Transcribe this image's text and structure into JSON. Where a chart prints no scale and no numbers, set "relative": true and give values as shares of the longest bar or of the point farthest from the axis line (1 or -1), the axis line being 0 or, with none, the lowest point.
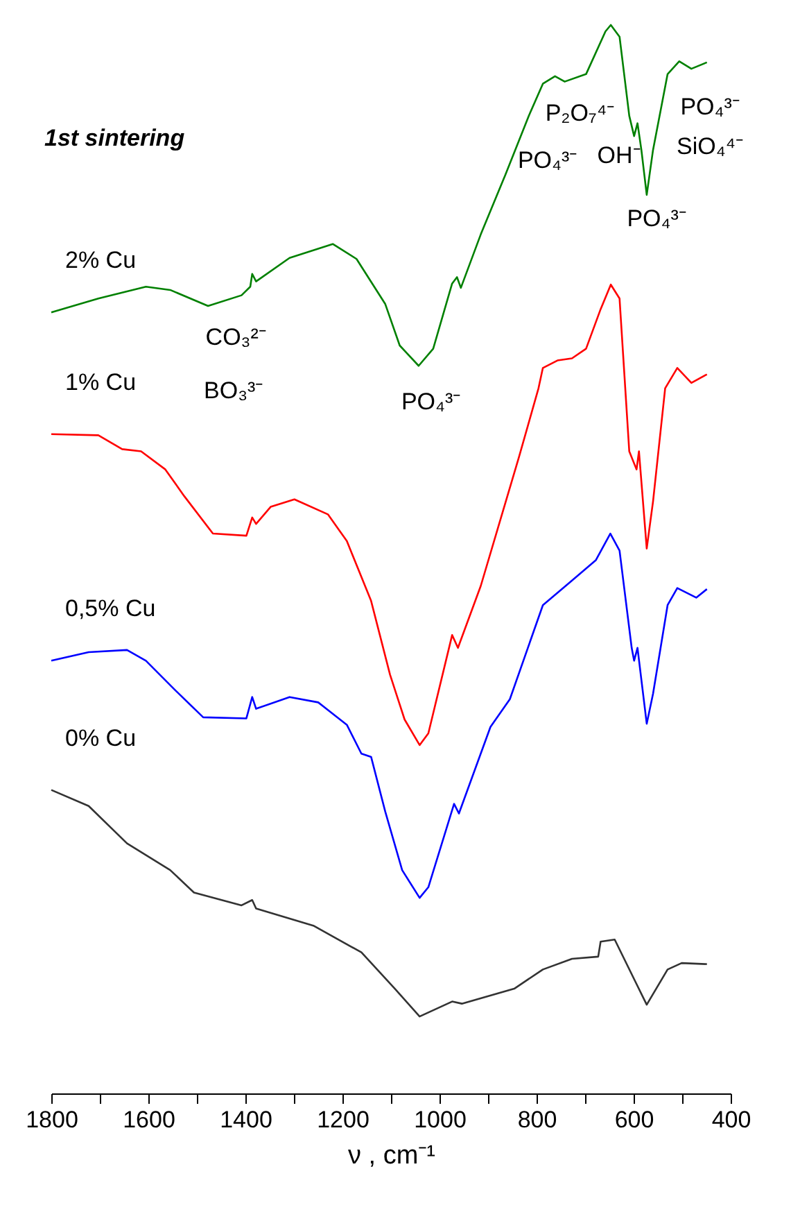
{
  "chart_data": {
    "type": "line",
    "title": "1st sintering",
    "xlabel": "ν , cm⁻¹",
    "relative": true,
    "legend": false,
    "grid": false,
    "xlim": [
      1800,
      400
    ],
    "xticks": [
      1800,
      {
        "value": 1700,
        "label": null
      },
      1600,
      {
        "value": 1500,
        "label": null
      },
      1400,
      {
        "value": 1300,
        "label": null
      },
      1200,
      {
        "value": 1100,
        "label": null
      },
      1000,
      {
        "value": 900,
        "label": null
      },
      800,
      {
        "value": 700,
        "label": null
      },
      600,
      {
        "value": 500,
        "label": null
      },
      400
    ],
    "annotations": [
      "CO₃²⁻",
      "BO₃³⁻",
      "PO₄³⁻",
      "PO₄³⁻",
      "P₂O₇⁴⁻",
      "OH⁻",
      "PO₄³⁻",
      "PO₄³⁻",
      "SiO₄⁴⁻"
    ],
    "series": [
      {
        "name": "2% Cu",
        "color": "#008000",
        "x": [
          1800,
          1703,
          1605,
          1555,
          1477,
          1408,
          1390,
          1386,
          1378,
          1309,
          1220,
          1171,
          1112,
          1082,
          1043,
          1013,
          974,
          964,
          956,
          915,
          865,
          816,
          787,
          762,
          742,
          698,
          658,
          647,
          629,
          609,
          599,
          592,
          584,
          573,
          560,
          530,
          506,
          481,
          449
        ],
        "values": [
          0.731,
          0.744,
          0.755,
          0.752,
          0.737,
          0.747,
          0.755,
          0.767,
          0.76,
          0.782,
          0.795,
          0.781,
          0.739,
          0.7,
          0.681,
          0.697,
          0.758,
          0.764,
          0.754,
          0.804,
          0.859,
          0.915,
          0.945,
          0.952,
          0.947,
          0.954,
          0.994,
          1.0,
          0.989,
          0.915,
          0.896,
          0.908,
          0.883,
          0.841,
          0.883,
          0.954,
          0.966,
          0.959,
          0.965
        ]
      },
      {
        "name": "1% Cu",
        "color": "#ff0000",
        "x": [
          1800,
          1703,
          1654,
          1615,
          1565,
          1526,
          1467,
          1398,
          1386,
          1378,
          1348,
          1299,
          1230,
          1191,
          1141,
          1102,
          1072,
          1041,
          1023,
          974,
          962,
          915,
          836,
          796,
          787,
          757,
          727,
          698,
          668,
          647,
          629,
          609,
          594,
          589,
          573,
          560,
          535,
          510,
          481,
          449
        ],
        "values": [
          0.617,
          0.616,
          0.603,
          0.601,
          0.584,
          0.559,
          0.524,
          0.522,
          0.539,
          0.533,
          0.549,
          0.556,
          0.542,
          0.517,
          0.461,
          0.392,
          0.35,
          0.326,
          0.337,
          0.429,
          0.417,
          0.475,
          0.596,
          0.66,
          0.679,
          0.686,
          0.688,
          0.697,
          0.734,
          0.757,
          0.744,
          0.601,
          0.584,
          0.601,
          0.51,
          0.554,
          0.66,
          0.679,
          0.665,
          0.673
        ]
      },
      {
        "name": "0,5% Cu",
        "color": "#0000ff",
        "x": [
          1800,
          1723,
          1644,
          1605,
          1546,
          1487,
          1398,
          1386,
          1378,
          1309,
          1250,
          1191,
          1161,
          1141,
          1112,
          1077,
          1041,
          1023,
          970,
          960,
          895,
          855,
          787,
          727,
          678,
          648,
          629,
          604,
          599,
          592,
          573,
          560,
          530,
          510,
          471,
          449
        ],
        "values": [
          0.405,
          0.413,
          0.415,
          0.405,
          0.378,
          0.352,
          0.351,
          0.371,
          0.36,
          0.371,
          0.366,
          0.345,
          0.318,
          0.315,
          0.264,
          0.209,
          0.183,
          0.193,
          0.271,
          0.262,
          0.343,
          0.369,
          0.457,
          0.48,
          0.499,
          0.524,
          0.508,
          0.417,
          0.405,
          0.417,
          0.346,
          0.374,
          0.457,
          0.473,
          0.464,
          0.472
        ]
      },
      {
        "name": "0% Cu",
        "color": "#333333",
        "x": [
          1800,
          1723,
          1644,
          1555,
          1506,
          1408,
          1386,
          1378,
          1260,
          1161,
          1092,
          1041,
          974,
          954,
          846,
          787,
          727,
          673,
          668,
          639,
          599,
          573,
          530,
          501,
          449
        ],
        "values": [
          0.284,
          0.269,
          0.234,
          0.209,
          0.188,
          0.176,
          0.181,
          0.173,
          0.157,
          0.132,
          0.098,
          0.072,
          0.086,
          0.084,
          0.098,
          0.116,
          0.126,
          0.128,
          0.142,
          0.144,
          0.107,
          0.083,
          0.116,
          0.122,
          0.121
        ]
      }
    ]
  }
}
